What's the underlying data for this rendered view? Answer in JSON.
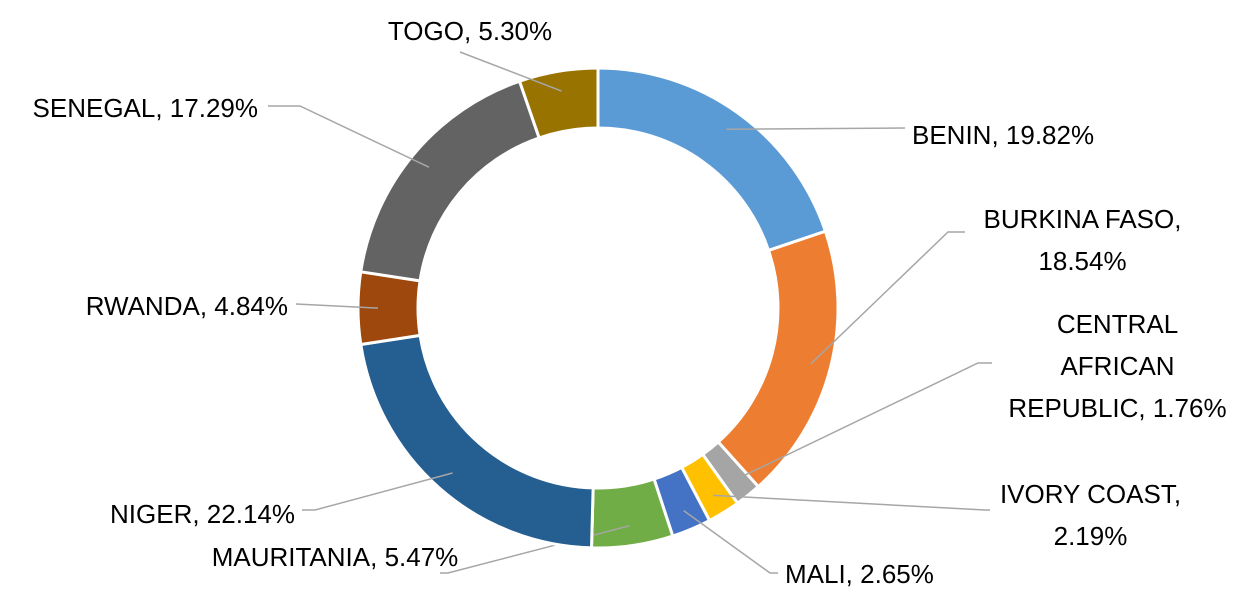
{
  "chart_data": {
    "type": "donut",
    "values": [
      19.82,
      18.54,
      1.76,
      2.19,
      2.65,
      5.47,
      22.14,
      4.84,
      17.29,
      5.3
    ],
    "value_labels": [
      "BENIN, 19.82%",
      "BURKINA FASO, 18.54%",
      "CENTRAL AFRICAN REPUBLIC, 1.76%",
      "IVORY COAST, 2.19%",
      "MALI, 2.65%",
      "MAURITANIA, 5.47%",
      "NIGER, 22.14%",
      "RWANDA, 4.84%",
      "SENEGAL, 17.29%",
      "TOGO, 5.30%"
    ],
    "colors": [
      "#5b9bd5",
      "#ed7d31",
      "#a5a5a5",
      "#ffc000",
      "#4472c4",
      "#70ad47",
      "#255e91",
      "#9e480e",
      "#636363",
      "#997300"
    ]
  }
}
